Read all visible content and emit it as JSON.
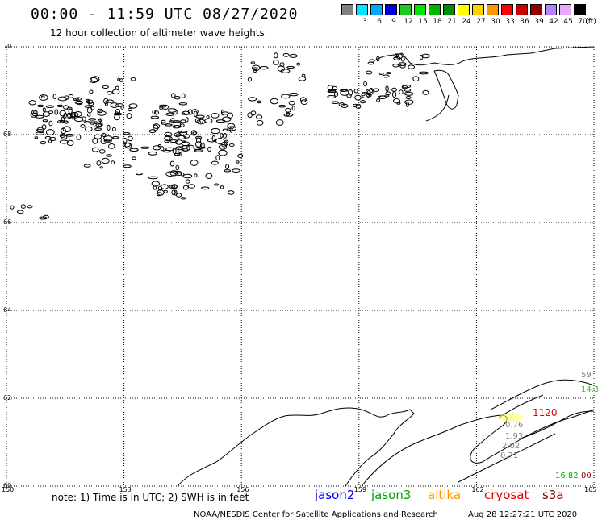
{
  "header": {
    "title": "00:00 - 11:59 UTC 08/27/2020",
    "subtitle": "12 hour collection of altimeter wave heights"
  },
  "legend": {
    "unit": "(ft)",
    "swatches": [
      {
        "color": "#808080",
        "label": ""
      },
      {
        "color": "#00e5ff",
        "label": "3"
      },
      {
        "color": "#00a6ff",
        "label": "6"
      },
      {
        "color": "#0000e6",
        "label": "9"
      },
      {
        "color": "#1ec81e",
        "label": "12"
      },
      {
        "color": "#00e600",
        "label": "15"
      },
      {
        "color": "#00b400",
        "label": "18"
      },
      {
        "color": "#008c00",
        "label": "21"
      },
      {
        "color": "#ffff00",
        "label": "24"
      },
      {
        "color": "#ffd200",
        "label": "27"
      },
      {
        "color": "#ff9600",
        "label": "30"
      },
      {
        "color": "#ff0000",
        "label": "33"
      },
      {
        "color": "#c80000",
        "label": "36"
      },
      {
        "color": "#960000",
        "label": "39"
      },
      {
        "color": "#b482ff",
        "label": "42"
      },
      {
        "color": "#e6aaff",
        "label": "45"
      },
      {
        "color": "#000000",
        "label": "70"
      }
    ]
  },
  "map": {
    "lat_labels": [
      "70",
      "68",
      "66",
      "64",
      "62",
      "60"
    ],
    "lon_labels": [
      "150",
      "153",
      "156",
      "159",
      "162",
      "165"
    ],
    "lat_range": [
      60,
      70
    ],
    "lon_range": [
      150,
      165
    ],
    "grid": "dotted",
    "observations": [
      {
        "text": "59",
        "color": "#808080"
      },
      {
        "text": "14.3",
        "color": "#1ec81e"
      },
      {
        "text": "1120",
        "color": "#e60000"
      },
      {
        "text": "0.76",
        "color": "#808080"
      },
      {
        "text": "1.93",
        "color": "#808080"
      },
      {
        "text": "2.02",
        "color": "#808080"
      },
      {
        "text": "0.71",
        "color": "#808080"
      },
      {
        "text": "16.82",
        "color": "#00b400"
      },
      {
        "text": "00",
        "color": "#8b0000"
      }
    ]
  },
  "note": "note: 1) Time is in UTC; 2) SWH is in feet",
  "satellites": [
    {
      "name": "jason2",
      "color": "#0000e6"
    },
    {
      "name": "jason3",
      "color": "#00a000"
    },
    {
      "name": "altika",
      "color": "#ff9600"
    },
    {
      "name": "cryosat",
      "color": "#e60000"
    },
    {
      "name": "s3a",
      "color": "#8b0000"
    }
  ],
  "footer": {
    "credit": "NOAA/NESDIS Center for Satellite Applications and Research",
    "timestamp": "Aug 28 12:27:21 UTC 2020"
  }
}
